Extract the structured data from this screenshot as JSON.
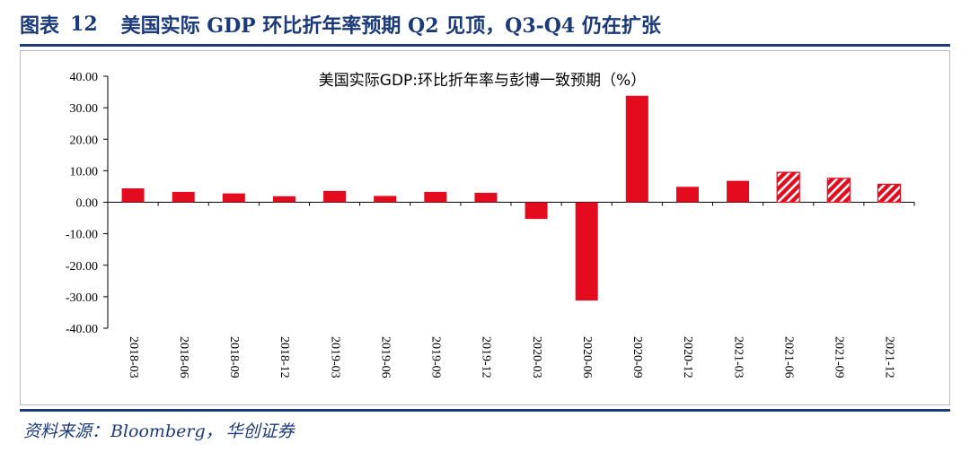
{
  "figure": {
    "label": "图表",
    "number": "12",
    "title": "美国实际 GDP 环比折年率预期 Q2 见顶，Q3-Q4 仍在扩张"
  },
  "source": {
    "prefix": "资料来源：",
    "text": "Bloomberg",
    "separator": "，",
    "org": "华创证券"
  },
  "colors": {
    "bar": "#e30b1d",
    "accent": "#1b3a7a",
    "axis": "#000000"
  },
  "chart_data": {
    "type": "bar",
    "title": "美国实际GDP:环比折年率与彭博一致预期（%）",
    "xlabel": "",
    "ylabel": "",
    "ylim": [
      -40,
      40
    ],
    "y_ticks": [
      "-40.00",
      "-30.00",
      "-20.00",
      "-10.00",
      "0.00",
      "10.00",
      "20.00",
      "30.00",
      "40.00"
    ],
    "grid": false,
    "legend": "none",
    "categories": [
      "2018-03",
      "2018-06",
      "2018-09",
      "2018-12",
      "2019-03",
      "2019-06",
      "2019-09",
      "2019-12",
      "2020-03",
      "2020-06",
      "2020-09",
      "2020-12",
      "2021-03",
      "2021-06",
      "2021-09",
      "2021-12"
    ],
    "series": [
      {
        "name": "美国实际GDP:环比折年率",
        "values": [
          4.4,
          3.3,
          2.8,
          1.9,
          3.6,
          2.0,
          3.3,
          3.0,
          -5.3,
          -31.2,
          33.8,
          4.9,
          6.8,
          null,
          null,
          null
        ]
      },
      {
        "name": "彭博一致预期",
        "values": [
          null,
          null,
          null,
          null,
          null,
          null,
          null,
          null,
          null,
          null,
          null,
          null,
          null,
          9.5,
          7.6,
          5.7
        ]
      }
    ]
  }
}
